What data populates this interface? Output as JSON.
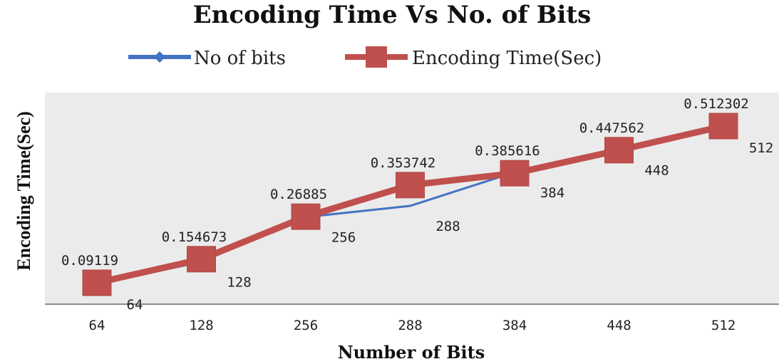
{
  "chart_data": {
    "type": "line",
    "title": "Encoding Time Vs No. of Bits",
    "xlabel": "Number of Bits",
    "ylabel": "Encoding Time(Sec)",
    "categories": [
      "64",
      "128",
      "256",
      "288",
      "384",
      "448",
      "512"
    ],
    "series": [
      {
        "name": "No of bits",
        "color": "#4472c4",
        "marker": "diamond",
        "values": [
          64,
          128,
          256,
          288,
          384,
          448,
          512
        ],
        "labels": [
          "64",
          "128",
          "256",
          "288",
          "384",
          "448",
          "512"
        ]
      },
      {
        "name": "Encoding Time(Sec)",
        "color": "#c0504d",
        "marker": "square",
        "values": [
          0.09119,
          0.154673,
          0.26885,
          0.353742,
          0.385616,
          0.447562,
          0.512302
        ],
        "labels": [
          "0.09119",
          "0.154673",
          "0.26885",
          "0.353742",
          "0.385616",
          "0.447562",
          "0.512302"
        ]
      }
    ],
    "legend_position": "top",
    "plot_background": "#ebebeb",
    "grid": false
  }
}
